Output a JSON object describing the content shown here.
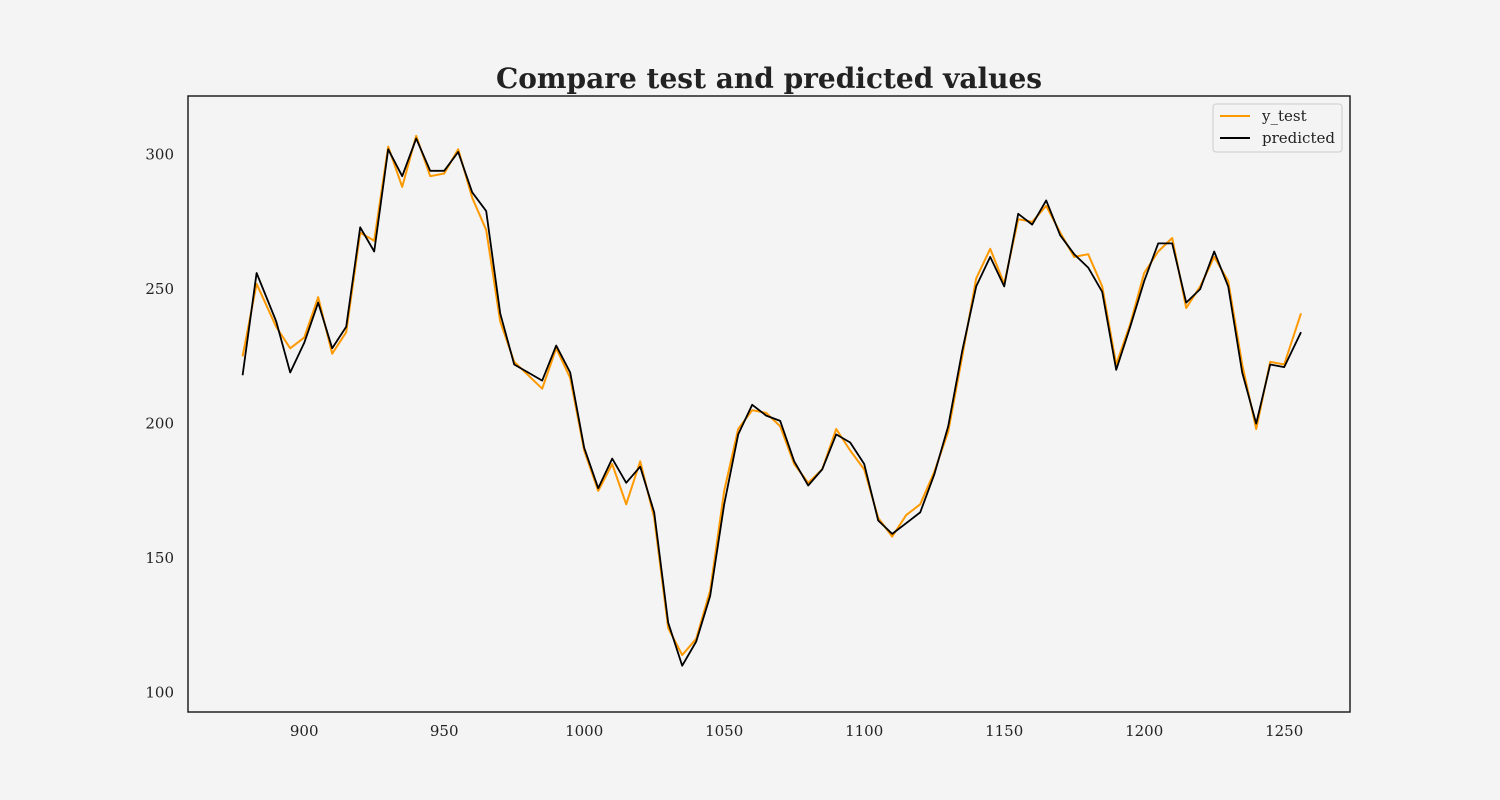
{
  "chart_data": {
    "type": "line",
    "title": "Compare test and predicted values",
    "xlabel": "",
    "ylabel": "",
    "xlim": [
      858.5,
      1273.5
    ],
    "ylim": [
      92.8,
      321.8
    ],
    "x_ticks": [
      900,
      950,
      1000,
      1050,
      1100,
      1150,
      1200,
      1250
    ],
    "y_ticks": [
      100,
      150,
      200,
      250,
      300
    ],
    "grid": false,
    "legend_position": "top-right",
    "x": [
      878,
      883,
      890,
      895,
      900,
      905,
      910,
      915,
      920,
      925,
      930,
      935,
      940,
      945,
      950,
      955,
      960,
      965,
      970,
      975,
      980,
      985,
      990,
      995,
      1000,
      1005,
      1010,
      1015,
      1020,
      1025,
      1030,
      1035,
      1040,
      1045,
      1050,
      1055,
      1060,
      1065,
      1070,
      1075,
      1080,
      1085,
      1090,
      1095,
      1100,
      1105,
      1110,
      1115,
      1120,
      1125,
      1130,
      1135,
      1140,
      1145,
      1150,
      1155,
      1160,
      1165,
      1170,
      1175,
      1180,
      1185,
      1190,
      1195,
      1200,
      1205,
      1210,
      1215,
      1220,
      1225,
      1230,
      1235,
      1240,
      1245,
      1250,
      1256
    ],
    "series": [
      {
        "name": "y_test",
        "color": "#ff9900",
        "values": [
          225,
          252,
          236,
          228,
          232,
          247,
          226,
          234,
          271,
          268,
          303,
          288,
          307,
          292,
          293,
          302,
          284,
          272,
          238,
          223,
          218,
          213,
          228,
          217,
          190,
          175,
          185,
          170,
          186,
          165,
          124,
          114,
          120,
          138,
          175,
          198,
          205,
          204,
          199,
          185,
          178,
          183,
          198,
          190,
          183,
          165,
          158,
          166,
          170,
          182,
          197,
          225,
          254,
          265,
          252,
          276,
          275,
          281,
          271,
          262,
          263,
          251,
          222,
          237,
          256,
          264,
          269,
          243,
          251,
          262,
          253,
          222,
          198,
          223,
          222,
          241
        ]
      },
      {
        "name": "predicted",
        "color": "#000000",
        "values": [
          218,
          256,
          238,
          219,
          230,
          245,
          228,
          236,
          273,
          264,
          302,
          292,
          306,
          294,
          294,
          301,
          286,
          279,
          241,
          222,
          219,
          216,
          229,
          219,
          191,
          176,
          187,
          178,
          184,
          167,
          126,
          110,
          119,
          136,
          170,
          196,
          207,
          203,
          201,
          186,
          177,
          183,
          196,
          193,
          185,
          164,
          159,
          163,
          167,
          181,
          199,
          227,
          251,
          262,
          251,
          278,
          274,
          283,
          270,
          263,
          258,
          249,
          220,
          236,
          253,
          267,
          267,
          245,
          250,
          264,
          251,
          219,
          200,
          222,
          221,
          234
        ]
      }
    ]
  }
}
